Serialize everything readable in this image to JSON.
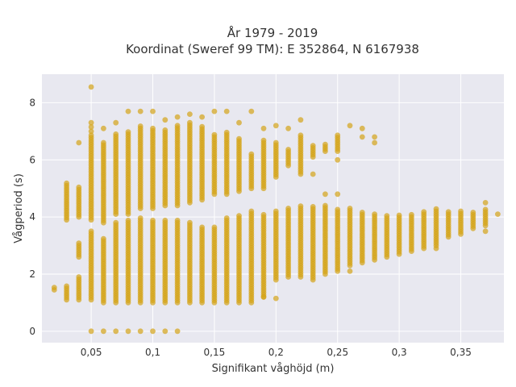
{
  "chart_data": {
    "type": "scatter",
    "title_lines": [
      "År 1979 - 2019",
      "Koordinat (Sweref 99 TM): E 352864, N 6167938"
    ],
    "xlabel": "Signifikant våghöjd (m)",
    "ylabel": "Vågperiod (s)",
    "xlim": [
      0.01,
      0.385
    ],
    "ylim": [
      -0.4,
      9.0
    ],
    "x_ticks": [
      0.05,
      0.1,
      0.15,
      0.2,
      0.25,
      0.3,
      0.35
    ],
    "x_tick_labels": [
      "0,05",
      "0,1",
      "0,15",
      "0,2",
      "0,25",
      "0,3",
      "0,35"
    ],
    "y_ticks": [
      0,
      2,
      4,
      6,
      8
    ],
    "y_tick_labels": [
      "0",
      "2",
      "4",
      "6",
      "8"
    ],
    "grid": true,
    "legend": "none",
    "colors": {
      "marker": "#d4a418",
      "plot_bg": "#e8e8f0",
      "grid": "#ffffff"
    },
    "columns": [
      {
        "x": 0.02,
        "ranges": [
          [
            1.45,
            1.6
          ]
        ],
        "points": []
      },
      {
        "x": 0.03,
        "ranges": [
          [
            1.1,
            1.6
          ],
          [
            3.9,
            5.2
          ]
        ],
        "points": []
      },
      {
        "x": 0.04,
        "ranges": [
          [
            1.1,
            1.9
          ],
          [
            2.6,
            3.1
          ],
          [
            4.0,
            5.1
          ]
        ],
        "points": [
          6.6
        ]
      },
      {
        "x": 0.05,
        "ranges": [
          [
            1.1,
            3.5
          ],
          [
            3.9,
            6.9
          ]
        ],
        "points": [
          8.55,
          7.3,
          7.15,
          7.0,
          0.0
        ]
      },
      {
        "x": 0.06,
        "ranges": [
          [
            1.0,
            3.3
          ],
          [
            3.8,
            6.6
          ]
        ],
        "points": [
          7.1,
          0.0
        ]
      },
      {
        "x": 0.07,
        "ranges": [
          [
            1.0,
            3.8
          ],
          [
            4.1,
            6.9
          ]
        ],
        "points": [
          7.3,
          0.0
        ]
      },
      {
        "x": 0.08,
        "ranges": [
          [
            1.0,
            3.9
          ],
          [
            4.1,
            7.0
          ]
        ],
        "points": [
          7.7,
          0.0
        ]
      },
      {
        "x": 0.09,
        "ranges": [
          [
            1.0,
            4.0
          ],
          [
            4.3,
            7.2
          ]
        ],
        "points": [
          7.7,
          0.0
        ]
      },
      {
        "x": 0.1,
        "ranges": [
          [
            1.0,
            3.9
          ],
          [
            4.3,
            7.1
          ]
        ],
        "points": [
          7.7,
          0.0
        ]
      },
      {
        "x": 0.11,
        "ranges": [
          [
            1.0,
            3.9
          ],
          [
            4.4,
            7.1
          ]
        ],
        "points": [
          7.4,
          0.0
        ]
      },
      {
        "x": 0.12,
        "ranges": [
          [
            1.0,
            3.9
          ],
          [
            4.4,
            7.2
          ]
        ],
        "points": [
          7.5,
          0.0
        ]
      },
      {
        "x": 0.13,
        "ranges": [
          [
            1.0,
            3.8
          ],
          [
            4.5,
            7.3
          ]
        ],
        "points": [
          7.6
        ]
      },
      {
        "x": 0.14,
        "ranges": [
          [
            1.0,
            3.7
          ],
          [
            4.6,
            7.2
          ]
        ],
        "points": [
          7.5
        ]
      },
      {
        "x": 0.15,
        "ranges": [
          [
            1.0,
            3.7
          ],
          [
            4.8,
            6.9
          ]
        ],
        "points": [
          7.7
        ]
      },
      {
        "x": 0.16,
        "ranges": [
          [
            1.0,
            4.0
          ],
          [
            4.8,
            7.0
          ]
        ],
        "points": [
          7.7
        ]
      },
      {
        "x": 0.17,
        "ranges": [
          [
            1.0,
            4.1
          ],
          [
            4.9,
            6.8
          ]
        ],
        "points": [
          7.3
        ]
      },
      {
        "x": 0.18,
        "ranges": [
          [
            1.0,
            4.2
          ],
          [
            5.0,
            6.2
          ]
        ],
        "points": [
          7.7
        ]
      },
      {
        "x": 0.19,
        "ranges": [
          [
            1.2,
            4.1
          ],
          [
            5.0,
            6.7
          ]
        ],
        "points": [
          7.1,
          1.2
        ]
      },
      {
        "x": 0.2,
        "ranges": [
          [
            1.8,
            4.2
          ],
          [
            5.4,
            6.6
          ]
        ],
        "points": [
          7.2,
          1.15
        ]
      },
      {
        "x": 0.21,
        "ranges": [
          [
            1.9,
            4.3
          ],
          [
            5.8,
            6.4
          ]
        ],
        "points": [
          7.1
        ]
      },
      {
        "x": 0.22,
        "ranges": [
          [
            1.9,
            4.4
          ],
          [
            5.5,
            6.9
          ]
        ],
        "points": [
          7.4
        ]
      },
      {
        "x": 0.23,
        "ranges": [
          [
            1.8,
            4.4
          ],
          [
            6.1,
            6.5
          ]
        ],
        "points": [
          5.5
        ]
      },
      {
        "x": 0.24,
        "ranges": [
          [
            2.0,
            4.4
          ],
          [
            6.3,
            6.6
          ]
        ],
        "points": [
          4.8
        ]
      },
      {
        "x": 0.25,
        "ranges": [
          [
            2.1,
            4.3
          ],
          [
            6.3,
            6.9
          ]
        ],
        "points": [
          6.0,
          4.8
        ]
      },
      {
        "x": 0.26,
        "ranges": [
          [
            2.3,
            4.3
          ]
        ],
        "points": [
          7.2,
          2.1
        ]
      },
      {
        "x": 0.27,
        "ranges": [
          [
            2.4,
            4.2
          ]
        ],
        "points": [
          7.1,
          6.8
        ]
      },
      {
        "x": 0.28,
        "ranges": [
          [
            2.5,
            4.1
          ]
        ],
        "points": [
          6.8,
          6.6
        ]
      },
      {
        "x": 0.29,
        "ranges": [
          [
            2.6,
            4.1
          ]
        ],
        "points": []
      },
      {
        "x": 0.3,
        "ranges": [
          [
            2.7,
            4.1
          ]
        ],
        "points": []
      },
      {
        "x": 0.31,
        "ranges": [
          [
            2.8,
            4.1
          ]
        ],
        "points": []
      },
      {
        "x": 0.32,
        "ranges": [
          [
            2.9,
            4.2
          ]
        ],
        "points": []
      },
      {
        "x": 0.33,
        "ranges": [
          [
            3.0,
            4.3
          ]
        ],
        "points": [
          2.9
        ]
      },
      {
        "x": 0.34,
        "ranges": [
          [
            3.3,
            4.2
          ]
        ],
        "points": []
      },
      {
        "x": 0.35,
        "ranges": [
          [
            3.4,
            4.2
          ]
        ],
        "points": []
      },
      {
        "x": 0.36,
        "ranges": [
          [
            3.6,
            4.2
          ]
        ],
        "points": []
      },
      {
        "x": 0.37,
        "ranges": [
          [
            3.7,
            4.3
          ]
        ],
        "points": [
          4.5,
          3.5
        ]
      },
      {
        "x": 0.38,
        "ranges": [
          [
            4.1,
            4.1
          ]
        ],
        "points": []
      }
    ]
  }
}
